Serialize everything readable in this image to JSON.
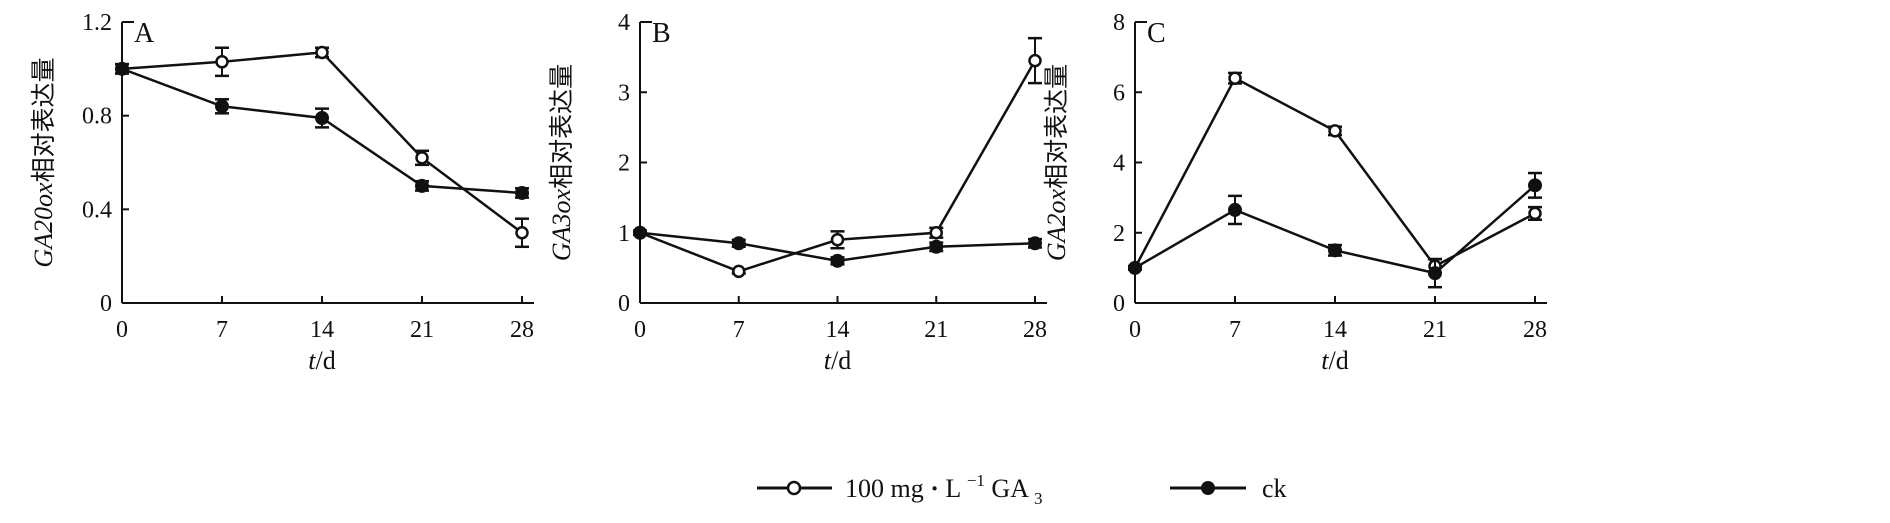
{
  "chart_data": [
    {
      "type": "line",
      "panel_label": "A",
      "ylabel": "GA20ox相对表达量",
      "xlabel": "t/d",
      "x": [
        0,
        7,
        14,
        21,
        28
      ],
      "xticks": [
        "0",
        "7",
        "14",
        "21",
        "28"
      ],
      "ylim": [
        0,
        1.2
      ],
      "yticks": [
        "0",
        "0.4",
        "0.8",
        "1.2"
      ],
      "series": [
        {
          "name": "100 mg·L⁻¹ GA₃",
          "marker": "open-circle",
          "values": [
            1.0,
            1.03,
            1.07,
            0.62,
            0.3
          ],
          "errors": [
            0.02,
            0.06,
            0.02,
            0.03,
            0.06
          ]
        },
        {
          "name": "ck",
          "marker": "filled-circle",
          "values": [
            1.0,
            0.84,
            0.79,
            0.5,
            0.47
          ],
          "errors": [
            0.02,
            0.03,
            0.04,
            0.02,
            0.02
          ]
        }
      ]
    },
    {
      "type": "line",
      "panel_label": "B",
      "ylabel": "GA3ox相对表达量",
      "xlabel": "t/d",
      "x": [
        0,
        7,
        14,
        21,
        28
      ],
      "xticks": [
        "0",
        "7",
        "14",
        "21",
        "28"
      ],
      "ylim": [
        0,
        4
      ],
      "yticks": [
        "0",
        "1",
        "2",
        "3",
        "4"
      ],
      "series": [
        {
          "name": "100 mg·L⁻¹ GA₃",
          "marker": "open-circle",
          "values": [
            1.0,
            0.45,
            0.9,
            1.0,
            3.45
          ],
          "errors": [
            0.03,
            0.03,
            0.12,
            0.07,
            0.32
          ]
        },
        {
          "name": "ck",
          "marker": "filled-circle",
          "values": [
            1.0,
            0.85,
            0.6,
            0.8,
            0.85
          ],
          "errors": [
            0.03,
            0.05,
            0.05,
            0.06,
            0.06
          ]
        }
      ]
    },
    {
      "type": "line",
      "panel_label": "C",
      "ylabel": "GA2ox相对表达量",
      "xlabel": "t/d",
      "x": [
        0,
        7,
        14,
        21,
        28
      ],
      "xticks": [
        "0",
        "7",
        "14",
        "21",
        "28"
      ],
      "ylim": [
        0,
        8
      ],
      "yticks": [
        "0",
        "2",
        "4",
        "6",
        "8"
      ],
      "series": [
        {
          "name": "100 mg·L⁻¹ GA₃",
          "marker": "open-circle",
          "values": [
            1.0,
            6.4,
            4.9,
            1.05,
            2.55
          ],
          "errors": [
            0.05,
            0.15,
            0.12,
            0.2,
            0.18
          ]
        },
        {
          "name": "ck",
          "marker": "filled-circle",
          "values": [
            1.0,
            2.65,
            1.5,
            0.85,
            3.35
          ],
          "errors": [
            0.05,
            0.4,
            0.15,
            0.4,
            0.35
          ]
        }
      ]
    }
  ],
  "legend": {
    "placement": "bottom-center",
    "items": [
      {
        "prefix": "100 mg",
        "dot": "·",
        "unit": "L",
        "sup": "−1",
        "gap": " GA",
        "sub": "3",
        "marker": "open-circle"
      },
      {
        "label": "ck",
        "marker": "filled-circle"
      }
    ]
  },
  "colors": {
    "ink": "#111111",
    "background": "#ffffff"
  }
}
